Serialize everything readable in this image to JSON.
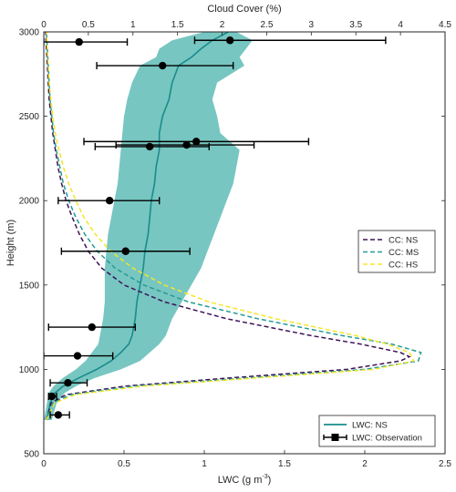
{
  "chart_data": {
    "type": "line",
    "xlabel_bottom": "LWC (g m",
    "xlabel_bottom_sup": "-3",
    "xlabel_bottom_end": ")",
    "xlabel_top": "Cloud Cover (%)",
    "ylabel": "Height (m)",
    "xlim_bottom": [
      0,
      2.5
    ],
    "xlim_top": [
      0,
      4.5
    ],
    "ylim": [
      500,
      3000
    ],
    "xticks_bottom": [
      0,
      0.5,
      1,
      1.5,
      2,
      2.5
    ],
    "xticks_bottom_labels": [
      "0",
      "0.5",
      "1",
      "1.5",
      "2",
      "2.5"
    ],
    "xticks_top": [
      0,
      0.5,
      1,
      1.5,
      2,
      2.5,
      3,
      3.5,
      4,
      4.5
    ],
    "xticks_top_labels": [
      "0",
      "0.5",
      "1",
      "1.5",
      "2",
      "2.5",
      "3",
      "3.5",
      "4",
      "4.5"
    ],
    "yticks": [
      500,
      1000,
      1500,
      2000,
      2500,
      3000
    ],
    "yticks_labels": [
      "500",
      "1000",
      "1500",
      "2000",
      "2500",
      "3000"
    ],
    "grid": false,
    "colors": {
      "ns_line": "#1a8c8c",
      "ns_band": "#5fbcb6",
      "cc_ns": "#3b1456",
      "cc_ms": "#249b93",
      "cc_hs": "#f5e52a",
      "observation": "#000000"
    },
    "legend_top": {
      "placement": "right-middle",
      "entries": [
        "CC: NS",
        "CC: MS",
        "CC: HS"
      ]
    },
    "legend_bottom": {
      "placement": "bottom-right",
      "entries": [
        "LWC: NS",
        "LWC: Observation"
      ]
    },
    "lwc_ns": {
      "name": "LWC: NS",
      "height": [
        700,
        800,
        860,
        900,
        950,
        1000,
        1050,
        1100,
        1150,
        1200,
        1300,
        1400,
        1500,
        1600,
        1700,
        1800,
        1900,
        2000,
        2100,
        2200,
        2300,
        2400,
        2500,
        2600,
        2700,
        2800,
        2850,
        2900,
        2950,
        3000
      ],
      "lwc": [
        0.02,
        0.04,
        0.07,
        0.12,
        0.22,
        0.33,
        0.42,
        0.48,
        0.53,
        0.55,
        0.57,
        0.58,
        0.6,
        0.62,
        0.63,
        0.65,
        0.66,
        0.67,
        0.69,
        0.7,
        0.72,
        0.72,
        0.74,
        0.78,
        0.8,
        0.84,
        0.92,
        0.98,
        1.05,
        1.15
      ],
      "band_low": [
        0.0,
        0.02,
        0.03,
        0.06,
        0.12,
        0.2,
        0.26,
        0.3,
        0.34,
        0.35,
        0.37,
        0.38,
        0.38,
        0.38,
        0.39,
        0.4,
        0.42,
        0.44,
        0.46,
        0.47,
        0.48,
        0.49,
        0.5,
        0.52,
        0.55,
        0.6,
        0.7,
        0.72,
        0.8,
        1.0
      ],
      "band_high": [
        0.05,
        0.08,
        0.13,
        0.2,
        0.32,
        0.48,
        0.6,
        0.66,
        0.72,
        0.76,
        0.8,
        0.86,
        0.92,
        0.98,
        1.02,
        1.06,
        1.1,
        1.14,
        1.18,
        1.2,
        1.22,
        1.1,
        1.08,
        1.05,
        1.08,
        1.25,
        1.22,
        1.26,
        1.3,
        1.2
      ]
    },
    "cloud_cover": [
      {
        "name": "CC: NS",
        "height": [
          700,
          800,
          850,
          900,
          950,
          1000,
          1050,
          1075,
          1100,
          1150,
          1200,
          1300,
          1400,
          1500,
          1600,
          1700,
          1800,
          1900,
          2000,
          2100,
          2200,
          2300,
          2400,
          2500,
          2600,
          2700,
          2800,
          2900,
          3000
        ],
        "cc": [
          0.03,
          0.08,
          0.25,
          0.9,
          2.1,
          3.4,
          4.0,
          4.1,
          4.0,
          3.55,
          3.0,
          2.05,
          1.35,
          0.9,
          0.65,
          0.5,
          0.4,
          0.32,
          0.25,
          0.2,
          0.16,
          0.13,
          0.1,
          0.08,
          0.06,
          0.05,
          0.04,
          0.03,
          0.02
        ]
      },
      {
        "name": "CC: MS",
        "height": [
          700,
          800,
          850,
          900,
          950,
          1000,
          1050,
          1100,
          1150,
          1200,
          1300,
          1400,
          1500,
          1600,
          1700,
          1800,
          1900,
          2000,
          2100,
          2200,
          2300,
          2400,
          2500,
          2600,
          2700,
          2800,
          2900,
          3000
        ],
        "cc": [
          0.03,
          0.1,
          0.3,
          1.0,
          2.3,
          3.6,
          4.2,
          4.23,
          3.9,
          3.35,
          2.4,
          1.62,
          1.12,
          0.8,
          0.6,
          0.46,
          0.36,
          0.28,
          0.22,
          0.18,
          0.14,
          0.11,
          0.09,
          0.07,
          0.06,
          0.05,
          0.04,
          0.03
        ]
      },
      {
        "name": "CC: HS",
        "height": [
          700,
          800,
          850,
          900,
          950,
          1000,
          1050,
          1100,
          1150,
          1200,
          1300,
          1400,
          1500,
          1600,
          1700,
          1800,
          1900,
          2000,
          2100,
          2200,
          2300,
          2400,
          2500,
          2600,
          2700,
          2800,
          2900,
          3000
        ],
        "cc": [
          0.03,
          0.12,
          0.35,
          1.1,
          2.4,
          3.7,
          4.15,
          4.1,
          3.85,
          3.5,
          2.6,
          1.85,
          1.35,
          1.0,
          0.75,
          0.58,
          0.45,
          0.36,
          0.28,
          0.22,
          0.17,
          0.13,
          0.1,
          0.08,
          0.06,
          0.05,
          0.04,
          0.03
        ]
      }
    ],
    "observations": {
      "name": "LWC: Observation",
      "points": [
        {
          "height": 2950,
          "lwc": 1.16,
          "err_low": 0.94,
          "err_high": 2.13
        },
        {
          "height": 2940,
          "lwc": 0.22,
          "err_low": 0.0,
          "err_high": 0.52
        },
        {
          "height": 2800,
          "lwc": 0.74,
          "err_low": 0.33,
          "err_high": 1.18
        },
        {
          "height": 2350,
          "lwc": 0.95,
          "err_low": 0.25,
          "err_high": 1.65
        },
        {
          "height": 2330,
          "lwc": 0.89,
          "err_low": 0.45,
          "err_high": 1.31
        },
        {
          "height": 2320,
          "lwc": 0.66,
          "err_low": 0.32,
          "err_high": 1.03
        },
        {
          "height": 2000,
          "lwc": 0.41,
          "err_low": 0.09,
          "err_high": 0.72
        },
        {
          "height": 1700,
          "lwc": 0.51,
          "err_low": 0.11,
          "err_high": 0.91
        },
        {
          "height": 1250,
          "lwc": 0.3,
          "err_low": 0.03,
          "err_high": 0.57
        },
        {
          "height": 1080,
          "lwc": 0.21,
          "err_low": 0.0,
          "err_high": 0.43
        },
        {
          "height": 920,
          "lwc": 0.15,
          "err_low": 0.04,
          "err_high": 0.27
        },
        {
          "height": 840,
          "lwc": 0.05,
          "err_low": 0.03,
          "err_high": 0.08
        },
        {
          "height": 730,
          "lwc": 0.09,
          "err_low": 0.04,
          "err_high": 0.16
        }
      ]
    }
  }
}
